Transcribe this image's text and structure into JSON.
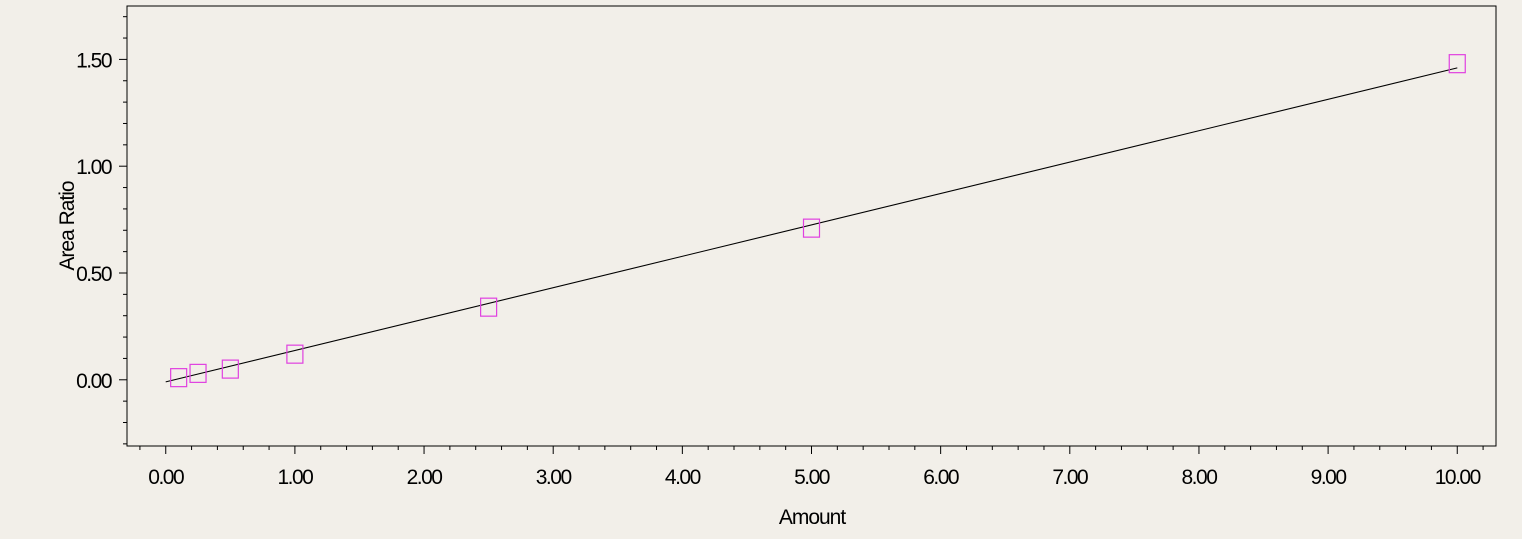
{
  "colors": {
    "background": "#f2efe9",
    "axis": "#000000",
    "line": "#000000",
    "marker": "#e040e0"
  },
  "chart_data": {
    "type": "scatter",
    "title": "",
    "xlabel": "Amount",
    "ylabel": "Area Ratio",
    "xlim": [
      -0.3,
      10.3
    ],
    "ylim": [
      -0.31,
      1.75
    ],
    "x_ticks": [
      0,
      1,
      2,
      3,
      4,
      5,
      6,
      7,
      8,
      9,
      10
    ],
    "x_tick_labels": [
      "0.00",
      "1.00",
      "2.00",
      "3.00",
      "4.00",
      "5.00",
      "6.00",
      "7.00",
      "8.00",
      "9.00",
      "10.00"
    ],
    "y_ticks": [
      0,
      0.5,
      1,
      1.5
    ],
    "y_tick_labels": [
      "0.00",
      "0.50",
      "1.00",
      "1.50"
    ],
    "grid": false,
    "legend": "none",
    "series": [
      {
        "kind": "points",
        "marker": "open-square",
        "x": [
          0.1,
          0.25,
          0.5,
          1.0,
          2.5,
          5.0,
          10.0
        ],
        "y": [
          0.01,
          0.03,
          0.05,
          0.12,
          0.34,
          0.71,
          1.48
        ]
      },
      {
        "kind": "fit-line",
        "x": [
          0.0,
          10.0
        ],
        "y": [
          -0.01,
          1.46
        ]
      }
    ]
  }
}
